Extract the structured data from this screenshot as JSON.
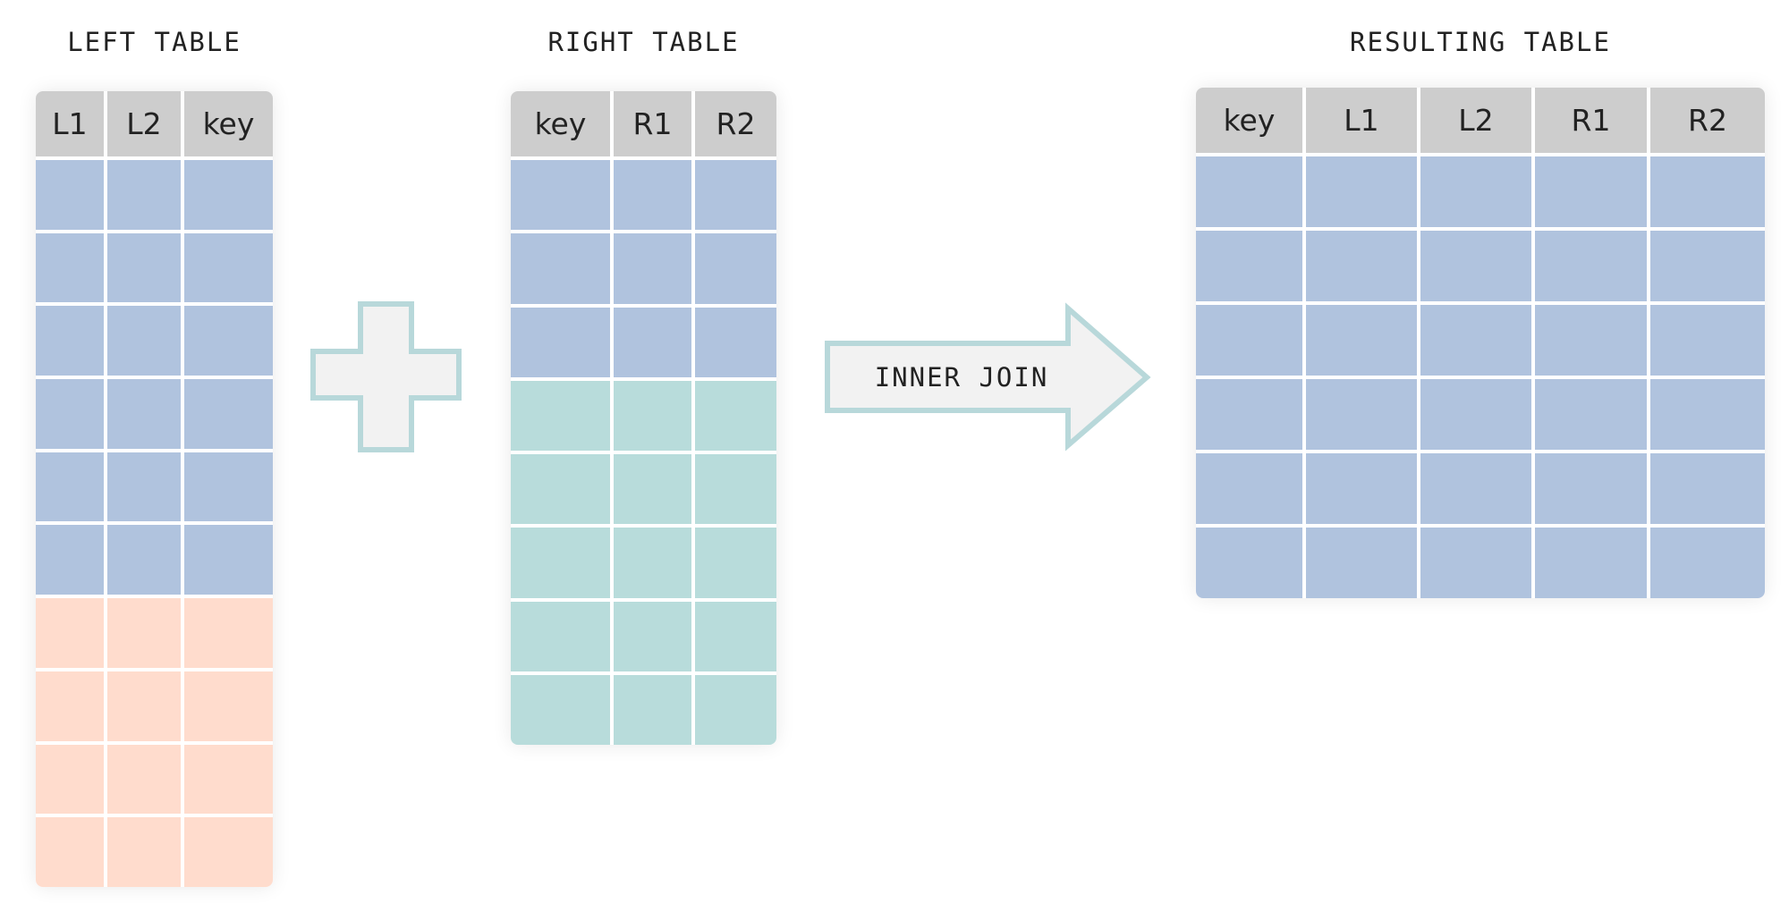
{
  "left_table": {
    "title": "LEFT TABLE",
    "columns": [
      "L1",
      "L2",
      "key"
    ],
    "row_groups": [
      {
        "class": "blue",
        "count": 6
      },
      {
        "class": "peach",
        "count": 4
      }
    ]
  },
  "right_table": {
    "title": "RIGHT TABLE",
    "columns": [
      "key",
      "R1",
      "R2"
    ],
    "row_groups": [
      {
        "class": "blue",
        "count": 3
      },
      {
        "class": "teal",
        "count": 5
      }
    ]
  },
  "result_table": {
    "title": "RESULTING TABLE",
    "columns": [
      "key",
      "L1",
      "L2",
      "R1",
      "R2"
    ],
    "row_groups": [
      {
        "class": "blue",
        "count": 6
      }
    ]
  },
  "operation": {
    "label": "INNER JOIN"
  },
  "colors": {
    "header": "#cdcdcd",
    "matched_rows": "#b0c3de",
    "left_only_rows": "#ffdccd",
    "right_only_rows": "#b8dcdb",
    "shape_outline": "#b8d8da",
    "shape_fill": "#f2f2f2"
  }
}
